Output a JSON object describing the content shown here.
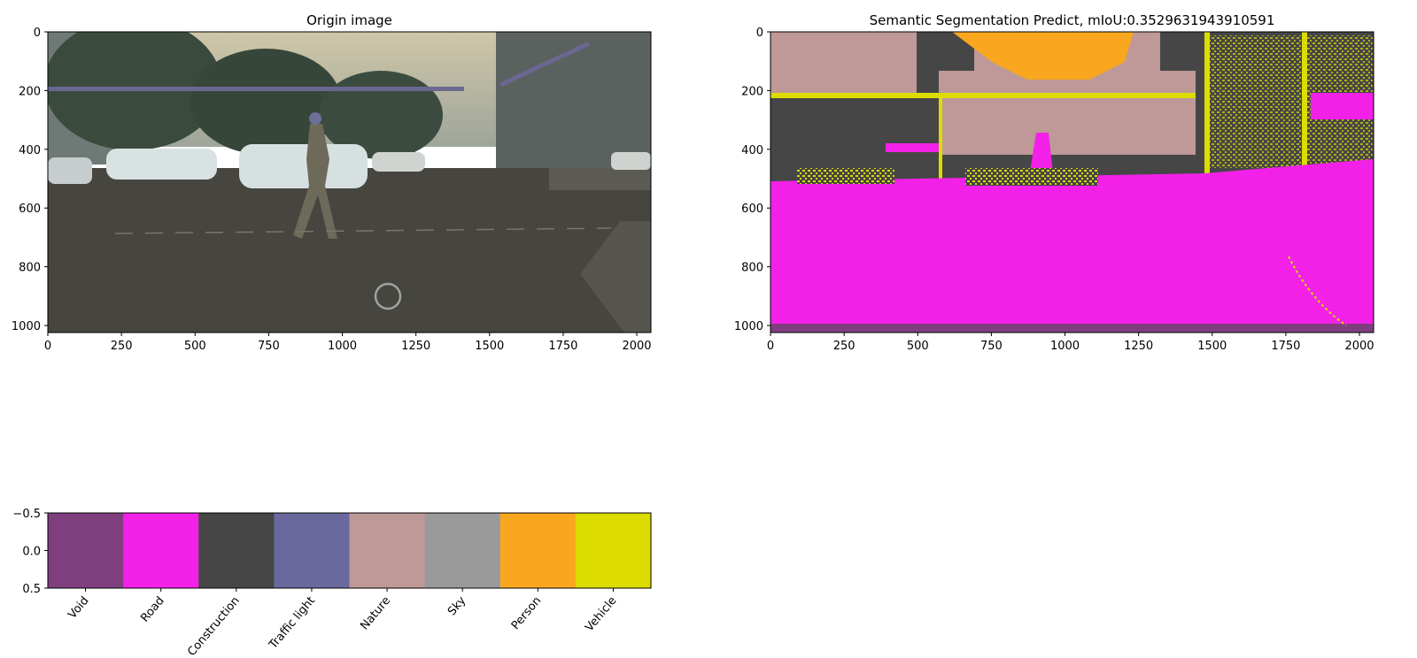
{
  "chart_data": [
    {
      "type": "image",
      "title": "Origin image",
      "xlim": [
        0,
        2048
      ],
      "ylim": [
        1024,
        0
      ],
      "xticks": [
        0,
        250,
        500,
        750,
        1000,
        1250,
        1500,
        1750,
        2000
      ],
      "yticks": [
        0,
        200,
        400,
        600,
        800,
        1000
      ]
    },
    {
      "type": "heatmap",
      "title": "Semantic Segmentation Predict, mIoU:0.3529631943910591",
      "xlim": [
        0,
        2048
      ],
      "ylim": [
        1024,
        0
      ],
      "xticks": [
        0,
        250,
        500,
        750,
        1000,
        1250,
        1500,
        1750,
        2000
      ],
      "yticks": [
        0,
        200,
        400,
        600,
        800,
        1000
      ]
    },
    {
      "type": "heatmap",
      "title": "",
      "categories": [
        "Void",
        "Road",
        "Construction",
        "Traffic light",
        "Nature",
        "Sky",
        "Person",
        "Vehicle"
      ],
      "colors": [
        "#7f3f7f",
        "#f321e8",
        "#464646",
        "#6a699e",
        "#be9997",
        "#9a9a9a",
        "#f9a71e",
        "#dcdc00"
      ],
      "values": [
        0,
        1,
        2,
        3,
        4,
        5,
        6,
        7
      ],
      "ylim": [
        0.5,
        -0.5
      ],
      "yticks": [
        "−0.5",
        "0.0",
        "0.5"
      ]
    }
  ]
}
